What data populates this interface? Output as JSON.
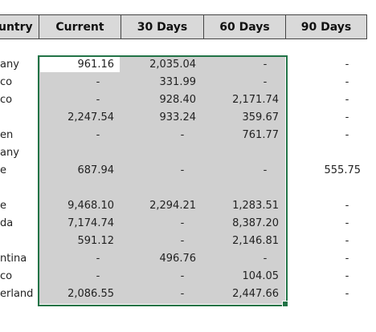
{
  "headers": {
    "country": "untry",
    "current": "Current",
    "d30": "30 Days",
    "d60": "60 Days",
    "d90": "90 Days"
  },
  "rows": [
    {
      "country": "any",
      "current": "961.16",
      "d30": "2,035.04",
      "d60": "-",
      "d90": "-"
    },
    {
      "country": "co",
      "current": "-",
      "d30": "331.99",
      "d60": "-",
      "d90": "-"
    },
    {
      "country": "co",
      "current": "-",
      "d30": "928.40",
      "d60": "2,171.74",
      "d90": "-"
    },
    {
      "country": "",
      "current": "2,247.54",
      "d30": "933.24",
      "d60": "359.67",
      "d90": "-"
    },
    {
      "country": "en",
      "current": "-",
      "d30": "-",
      "d60": "761.77",
      "d90": "-"
    },
    {
      "country": "any",
      "current": "",
      "d30": "",
      "d60": "",
      "d90": ""
    },
    {
      "country": "e",
      "current": "687.94",
      "d30": "-",
      "d60": "-",
      "d90": "555.75"
    },
    {
      "country": "",
      "current": "",
      "d30": "",
      "d60": "",
      "d90": ""
    },
    {
      "country": "e",
      "current": "9,468.10",
      "d30": "2,294.21",
      "d60": "1,283.51",
      "d90": "-"
    },
    {
      "country": "da",
      "current": "7,174.74",
      "d30": "-",
      "d60": "8,387.20",
      "d90": "-"
    },
    {
      "country": "",
      "current": "591.12",
      "d30": "-",
      "d60": "2,146.81",
      "d90": "-"
    },
    {
      "country": "ntina",
      "current": "-",
      "d30": "496.76",
      "d60": "-",
      "d90": "-"
    },
    {
      "country": "co",
      "current": "-",
      "d30": "-",
      "d60": "104.05",
      "d90": "-"
    },
    {
      "country": "erland",
      "current": "2,086.55",
      "d30": "-",
      "d60": "2,447.66",
      "d90": "-"
    }
  ]
}
